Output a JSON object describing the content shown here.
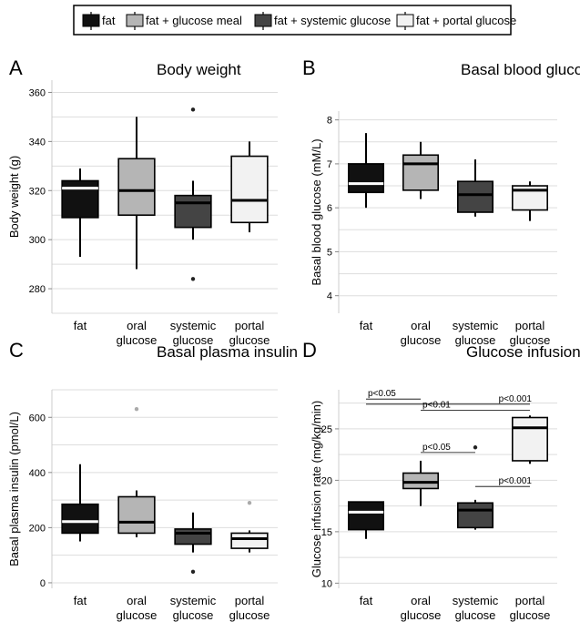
{
  "legend": {
    "items": [
      {
        "label": "fat",
        "color": "#111111"
      },
      {
        "label": "fat + glucose meal",
        "color": "#b5b5b5"
      },
      {
        "label": "fat + systemic glucose",
        "color": "#444444"
      },
      {
        "label": "fat + portal glucose",
        "color": "#f2f2f2"
      }
    ]
  },
  "chart_data": [
    {
      "panel": "A",
      "type": "box",
      "title": "Body weight",
      "ylabel": "Body weight (g)",
      "categories": [
        "fat",
        "oral glucose",
        "systemic glucose",
        "portal glucose"
      ],
      "category_lines": [
        [
          "fat"
        ],
        [
          "oral",
          "glucose"
        ],
        [
          "systemic",
          "glucose"
        ],
        [
          "portal",
          "glucose"
        ]
      ],
      "ylim": [
        270,
        365
      ],
      "yticks": [
        280,
        300,
        320,
        340,
        360
      ],
      "grid_step": 10,
      "boxes": [
        {
          "min": 293,
          "q1": 309,
          "median": 321,
          "q3": 324,
          "max": 329,
          "mean": 323,
          "outliers": []
        },
        {
          "min": 288,
          "q1": 310,
          "median": 320,
          "q3": 333,
          "max": 350,
          "outliers": []
        },
        {
          "min": 300,
          "q1": 305,
          "median": 315,
          "q3": 318,
          "max": 324,
          "outliers": [
            353,
            284
          ]
        },
        {
          "min": 303,
          "q1": 307,
          "median": 316,
          "q3": 334,
          "max": 340,
          "outliers": []
        }
      ]
    },
    {
      "panel": "B",
      "type": "box",
      "title": "Basal blood glucose",
      "ylabel": "Basal blood glucose (mM/L)",
      "categories": [
        "fat",
        "oral glucose",
        "systemic glucose",
        "portal glucose"
      ],
      "category_lines": [
        [
          "fat"
        ],
        [
          "oral",
          "glucose"
        ],
        [
          "systemic",
          "glucose"
        ],
        [
          "portal",
          "glucose"
        ]
      ],
      "ylim": [
        3.6,
        8.2
      ],
      "yticks": [
        4,
        5,
        6,
        7,
        8
      ],
      "grid_step": 0.5,
      "boxes": [
        {
          "min": 6.0,
          "q1": 6.35,
          "median": 6.55,
          "q3": 7.0,
          "max": 7.7,
          "mean": 6.55,
          "outliers": []
        },
        {
          "min": 6.2,
          "q1": 6.4,
          "median": 7.0,
          "q3": 7.2,
          "max": 7.5,
          "outliers": []
        },
        {
          "min": 5.8,
          "q1": 5.9,
          "median": 6.3,
          "q3": 6.6,
          "max": 7.1,
          "outliers": []
        },
        {
          "min": 5.7,
          "q1": 5.95,
          "median": 6.4,
          "q3": 6.5,
          "max": 6.6,
          "outliers": []
        }
      ]
    },
    {
      "panel": "C",
      "type": "box",
      "title": "Basal plasma insulin",
      "ylabel": "Basal plasma insulin (pmol/L)",
      "categories": [
        "fat",
        "oral glucose",
        "systemic glucose",
        "portal glucose"
      ],
      "category_lines": [
        [
          "fat"
        ],
        [
          "oral",
          "glucose"
        ],
        [
          "systemic",
          "glucose"
        ],
        [
          "portal",
          "glucose"
        ]
      ],
      "ylim": [
        -20,
        700
      ],
      "yticks": [
        0,
        200,
        400,
        600
      ],
      "grid_step": 100,
      "boxes": [
        {
          "min": 150,
          "q1": 180,
          "median": 222,
          "q3": 285,
          "max": 430,
          "mean": 222,
          "outliers": []
        },
        {
          "min": 165,
          "q1": 180,
          "median": 220,
          "q3": 312,
          "max": 335,
          "outliers": [
            630
          ]
        },
        {
          "min": 110,
          "q1": 140,
          "median": 180,
          "q3": 195,
          "max": 255,
          "outliers": [
            40
          ]
        },
        {
          "min": 110,
          "q1": 125,
          "median": 160,
          "q3": 180,
          "max": 190,
          "outliers": [
            290
          ]
        }
      ]
    },
    {
      "panel": "D",
      "type": "box",
      "title": "Glucose infusion rate",
      "ylabel": "Glucose infusion rate (mg/kg/min)",
      "categories": [
        "fat",
        "oral glucose",
        "systemic glucose",
        "portal glucose"
      ],
      "category_lines": [
        [
          "fat"
        ],
        [
          "oral",
          "glucose"
        ],
        [
          "systemic",
          "glucose"
        ],
        [
          "portal",
          "glucose"
        ]
      ],
      "ylim": [
        9.5,
        28.8
      ],
      "yticks": [
        10,
        15,
        20,
        25
      ],
      "grid_step": 2.5,
      "boxes": [
        {
          "min": 14.3,
          "q1": 15.2,
          "median": 16.9,
          "q3": 17.9,
          "max": 17.9,
          "outliers": []
        },
        {
          "min": 17.5,
          "q1": 19.2,
          "median": 19.8,
          "q3": 20.7,
          "max": 21.9,
          "outliers": []
        },
        {
          "min": 15.2,
          "q1": 15.4,
          "median": 17.1,
          "q3": 17.8,
          "max": 18.1,
          "outliers": [
            23.2
          ]
        },
        {
          "min": 21.6,
          "q1": 21.9,
          "median": 25.1,
          "q3": 26.1,
          "max": 26.3,
          "outliers": []
        }
      ],
      "annotations": [
        {
          "label": "p<0.05",
          "from": 0,
          "to": 1,
          "y": 27.9
        },
        {
          "label": "p<0.001",
          "from": 0,
          "to": 3,
          "y": 27.4
        },
        {
          "label": "p<0.01",
          "from": 1,
          "to": 3,
          "y": 26.8
        },
        {
          "label": "p<0.05",
          "from": 1,
          "to": 2,
          "y": 22.7
        },
        {
          "label": "p<0.001",
          "from": 2,
          "to": 3,
          "y": 19.4
        }
      ]
    }
  ],
  "panel_letters": [
    "A",
    "B",
    "C",
    "D"
  ]
}
